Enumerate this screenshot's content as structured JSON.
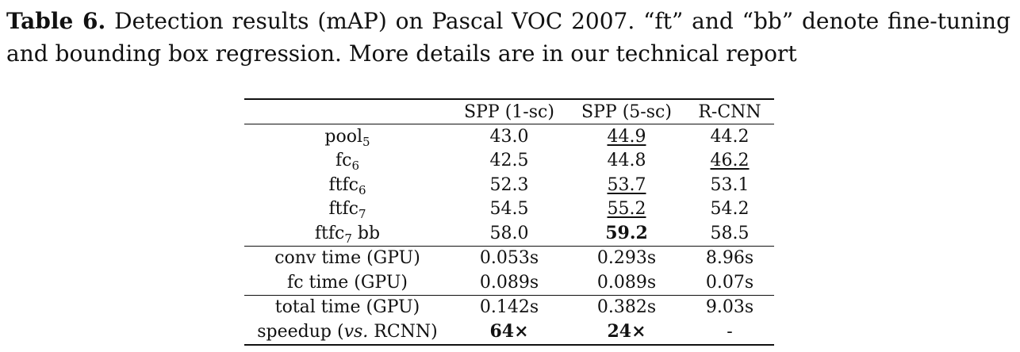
{
  "caption": {
    "label": "Table 6.",
    "text": " Detection results (mAP) on Pascal VOC 2007. “ft” and “bb” denote fine-tuning and bounding box regression. More details are in our technical report"
  },
  "table": {
    "headers": [
      "",
      "SPP (1-sc)",
      "SPP (5-sc)",
      "R-CNN"
    ],
    "rows": [
      {
        "label": "pool",
        "sub": "5",
        "suffix": "",
        "values": [
          "43.0",
          "44.9",
          "44.2"
        ],
        "underline": [
          false,
          true,
          false
        ],
        "bold": [
          false,
          false,
          false
        ]
      },
      {
        "label": "fc",
        "sub": "6",
        "suffix": "",
        "values": [
          "42.5",
          "44.8",
          "46.2"
        ],
        "underline": [
          false,
          false,
          true
        ],
        "bold": [
          false,
          false,
          false
        ]
      },
      {
        "label": "ftfc",
        "sub": "6",
        "suffix": "",
        "values": [
          "52.3",
          "53.7",
          "53.1"
        ],
        "underline": [
          false,
          true,
          false
        ],
        "bold": [
          false,
          false,
          false
        ]
      },
      {
        "label": "ftfc",
        "sub": "7",
        "suffix": "",
        "values": [
          "54.5",
          "55.2",
          "54.2"
        ],
        "underline": [
          false,
          true,
          false
        ],
        "bold": [
          false,
          false,
          false
        ]
      },
      {
        "label": "ftfc",
        "sub": "7",
        "suffix": " bb",
        "values": [
          "58.0",
          "59.2",
          "58.5"
        ],
        "underline": [
          false,
          false,
          false
        ],
        "bold": [
          false,
          true,
          false
        ]
      }
    ],
    "timing": [
      {
        "label": "conv time (GPU)",
        "values": [
          "0.053s",
          "0.293s",
          "8.96s"
        ]
      },
      {
        "label": "fc time (GPU)",
        "values": [
          "0.089s",
          "0.089s",
          "0.07s"
        ]
      }
    ],
    "total": [
      {
        "label": "total time (GPU)",
        "values": [
          "0.142s",
          "0.382s",
          "9.03s"
        ]
      }
    ],
    "speedup": {
      "label_pre": "speedup (",
      "label_em": "vs.",
      "label_post": " RCNN)",
      "values": [
        "64×",
        "24×",
        "-"
      ],
      "bold": [
        true,
        true,
        false
      ]
    }
  }
}
